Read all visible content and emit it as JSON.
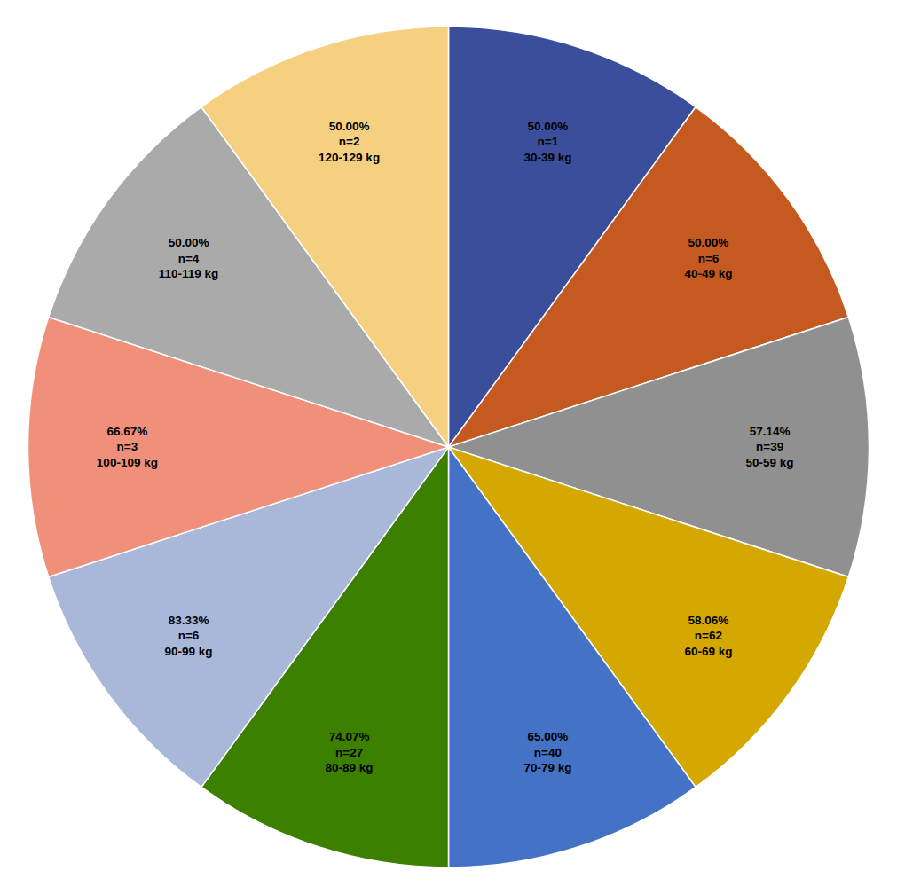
{
  "chart_data": {
    "type": "pie",
    "categories": [
      "50.00%\nn=1\n30-39 kg",
      "50.00%\nn=6\n40-49 kg",
      "57.14%\nn=39\n50-59 kg",
      "58.06%\nn=62\n60-69 kg",
      "65.00%\nn=40\n70-79 kg",
      "74.07%\nn=27\n80-89 kg",
      "83.33%\nn=6\n90-99 kg",
      "66.67%\nn=3\n100-109 kg",
      "50.00%\nn=4\n110-119 kg",
      "50.00%\nn=2\n120-129 kg"
    ],
    "values": [
      1,
      1,
      1,
      1,
      1,
      1,
      1,
      1,
      1,
      1
    ],
    "colors": [
      "#3B4E9B",
      "#C55A20",
      "#909090",
      "#D4A800",
      "#4472C4",
      "#3B8000",
      "#A9B7D8",
      "#F0907A",
      "#AAAAAA",
      "#F5D080"
    ]
  }
}
